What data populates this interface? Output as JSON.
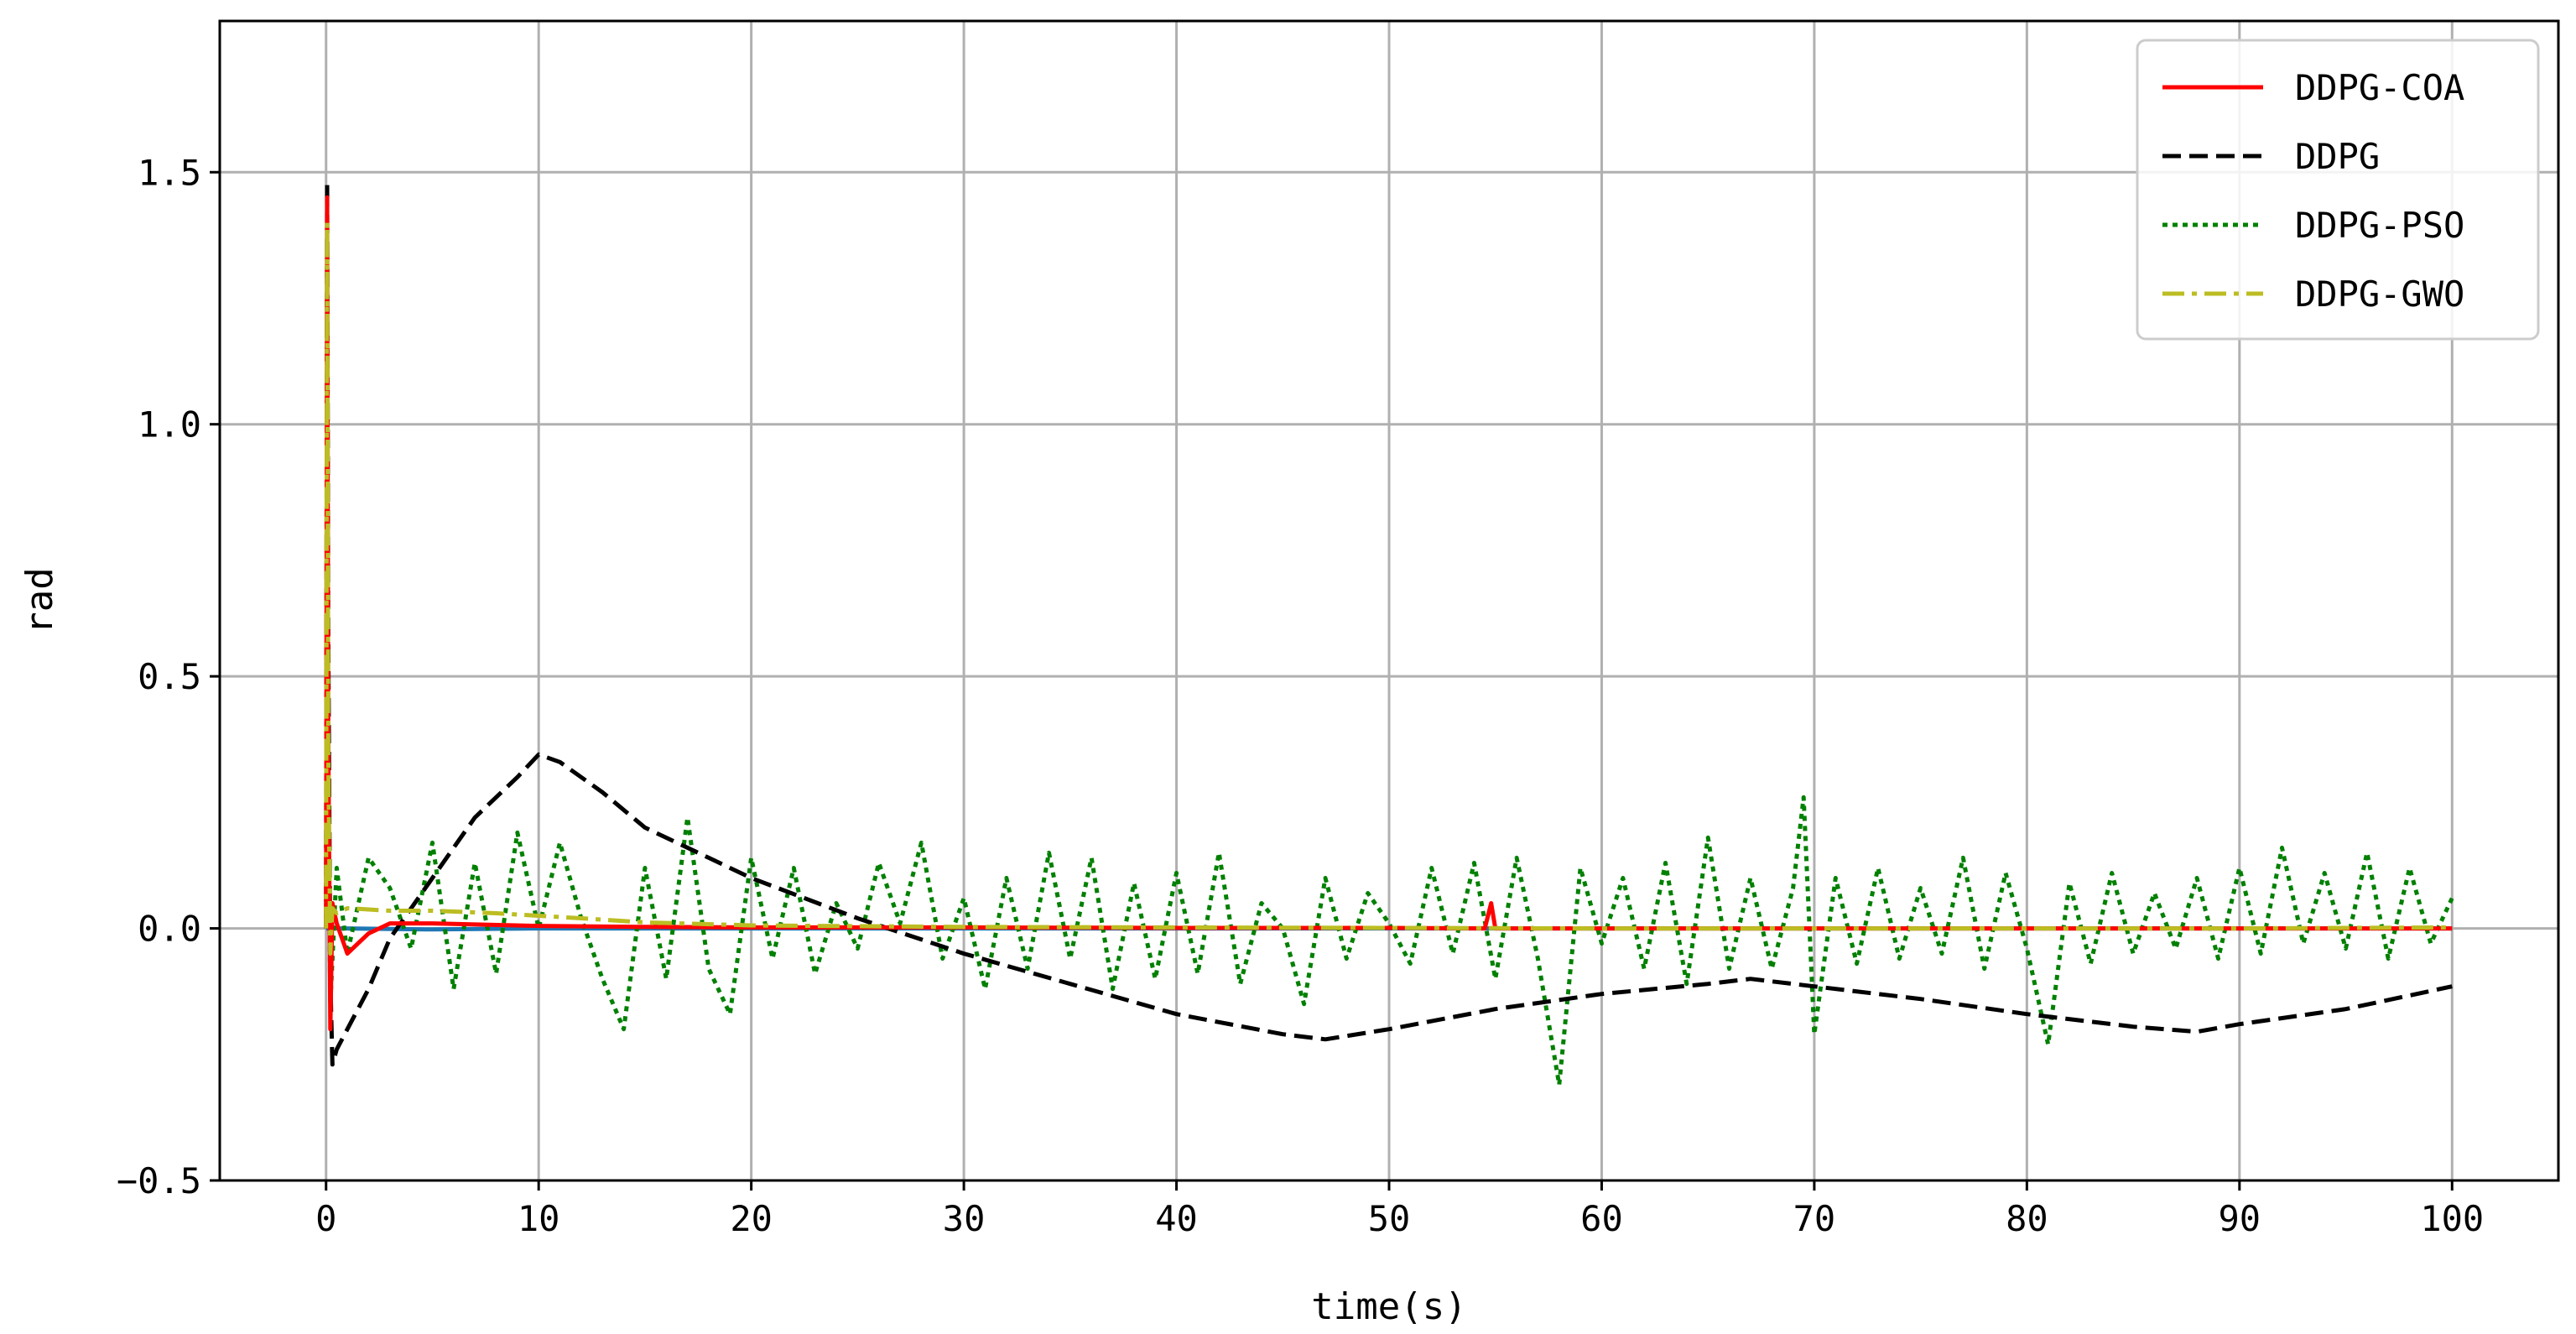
{
  "chart_data": {
    "type": "line",
    "title": "",
    "xlabel": "time(s)",
    "ylabel": "rad",
    "xlim": [
      -5,
      105
    ],
    "ylim": [
      -0.5,
      1.8
    ],
    "xticks": [
      0,
      10,
      20,
      30,
      40,
      50,
      60,
      70,
      80,
      90,
      100
    ],
    "xtick_labels": [
      "0",
      "10",
      "20",
      "30",
      "40",
      "50",
      "60",
      "70",
      "80",
      "90",
      "100"
    ],
    "yticks": [
      -0.5,
      0.0,
      0.5,
      1.0,
      1.5
    ],
    "ytick_labels": [
      "−0.5",
      "0.0",
      "0.5",
      "1.0",
      "1.5"
    ],
    "grid": true,
    "legend_position": "top-right",
    "series": [
      {
        "name": "DDPG-COA",
        "color": "#ff0000",
        "style": "solid",
        "x": [
          0,
          0.05,
          0.1,
          0.2,
          0.3,
          0.5,
          1,
          1.5,
          2,
          3,
          5,
          10,
          15,
          20,
          30,
          40,
          50,
          54.5,
          54.8,
          55,
          55.3,
          60,
          70,
          80,
          90,
          100
        ],
        "y": [
          0,
          1.45,
          0.4,
          -0.2,
          0.05,
          0.01,
          -0.05,
          -0.03,
          -0.01,
          0.01,
          0.01,
          0.005,
          0.003,
          0.002,
          0.002,
          0.001,
          0.001,
          0.0,
          0.05,
          0.0,
          0.0,
          0.0,
          0.0,
          0.0,
          0.0,
          0.0
        ]
      },
      {
        "name": "DDPG",
        "color": "#000000",
        "style": "dashed",
        "x": [
          0,
          0.05,
          0.1,
          0.2,
          0.3,
          0.5,
          1,
          2,
          3,
          5,
          7,
          9,
          10,
          11,
          13,
          15,
          18,
          20,
          25,
          30,
          35,
          40,
          45,
          47,
          50,
          55,
          60,
          65,
          67,
          70,
          75,
          80,
          85,
          88,
          90,
          95,
          100
        ],
        "y": [
          0,
          1.48,
          0.6,
          -0.1,
          -0.27,
          -0.24,
          -0.2,
          -0.12,
          -0.02,
          0.1,
          0.22,
          0.3,
          0.345,
          0.33,
          0.27,
          0.2,
          0.14,
          0.1,
          0.02,
          -0.05,
          -0.11,
          -0.17,
          -0.21,
          -0.22,
          -0.2,
          -0.16,
          -0.13,
          -0.11,
          -0.1,
          -0.115,
          -0.14,
          -0.17,
          -0.195,
          -0.205,
          -0.19,
          -0.16,
          -0.115
        ]
      },
      {
        "name": "DDPG-PSO",
        "color": "#008000",
        "style": "dotted",
        "x": [
          0,
          0.05,
          0.1,
          0.2,
          0.5,
          1,
          2,
          3,
          4,
          5,
          6,
          7,
          8,
          9,
          10,
          11,
          12,
          13,
          14,
          15,
          16,
          17,
          18,
          19,
          20,
          21,
          22,
          23,
          24,
          25,
          26,
          27,
          28,
          29,
          30,
          31,
          32,
          33,
          34,
          35,
          36,
          37,
          38,
          39,
          40,
          41,
          42,
          43,
          44,
          45,
          46,
          47,
          48,
          49,
          50,
          51,
          52,
          53,
          54,
          55,
          56,
          57,
          58,
          59,
          60,
          61,
          62,
          63,
          64,
          65,
          66,
          67,
          68,
          69,
          69.5,
          70,
          71,
          72,
          73,
          74,
          75,
          76,
          77,
          78,
          79,
          80,
          81,
          82,
          83,
          84,
          85,
          86,
          87,
          88,
          89,
          90,
          91,
          92,
          93,
          94,
          95,
          96,
          97,
          98,
          99,
          100
        ],
        "y": [
          0,
          1.2,
          0.3,
          -0.15,
          0.12,
          -0.05,
          0.14,
          0.08,
          -0.04,
          0.17,
          -0.12,
          0.13,
          -0.09,
          0.19,
          0.0,
          0.17,
          0.02,
          -0.1,
          -0.2,
          0.12,
          -0.1,
          0.22,
          -0.08,
          -0.17,
          0.14,
          -0.06,
          0.12,
          -0.09,
          0.05,
          -0.04,
          0.13,
          0.01,
          0.17,
          -0.06,
          0.06,
          -0.12,
          0.1,
          -0.08,
          0.15,
          -0.06,
          0.14,
          -0.12,
          0.09,
          -0.1,
          0.11,
          -0.09,
          0.15,
          -0.11,
          0.05,
          0.0,
          -0.15,
          0.1,
          -0.06,
          0.07,
          0.01,
          -0.07,
          0.12,
          -0.05,
          0.13,
          -0.1,
          0.14,
          -0.06,
          -0.31,
          0.12,
          -0.03,
          0.1,
          -0.08,
          0.13,
          -0.11,
          0.18,
          -0.08,
          0.1,
          -0.08,
          0.08,
          0.26,
          -0.21,
          0.1,
          -0.07,
          0.12,
          -0.06,
          0.08,
          -0.05,
          0.14,
          -0.08,
          0.11,
          -0.04,
          -0.23,
          0.09,
          -0.07,
          0.11,
          -0.05,
          0.07,
          -0.04,
          0.1,
          -0.06,
          0.12,
          -0.05,
          0.16,
          -0.03,
          0.11,
          -0.04,
          0.15,
          -0.06,
          0.12,
          -0.03,
          0.06
        ]
      },
      {
        "name": "DDPG-GWO",
        "color": "#bcbd22",
        "style": "dashdot",
        "x": [
          0,
          0.05,
          0.1,
          0.2,
          0.3,
          0.5,
          1,
          3,
          5,
          8,
          10,
          12,
          15,
          20,
          30,
          40,
          50,
          60,
          70,
          80,
          90,
          100
        ],
        "y": [
          0,
          1.4,
          0.35,
          -0.05,
          0.04,
          0.03,
          0.04,
          0.035,
          0.035,
          0.03,
          0.025,
          0.02,
          0.012,
          0.006,
          0.003,
          0.002,
          0.001,
          0.0,
          0.0,
          0.0,
          0.0,
          0.002
        ]
      },
      {
        "name": "",
        "color": "#1f77b4",
        "style": "solid",
        "x": [
          0,
          0.3,
          1,
          5,
          10,
          15,
          20,
          30,
          40,
          50,
          60,
          70,
          80,
          90,
          100
        ],
        "y": [
          0,
          0.0,
          0.0,
          -0.002,
          0.0,
          0.0,
          0.0,
          0.0,
          0.0,
          0.0,
          0.0,
          0.0,
          0.0,
          0.0,
          0.0
        ]
      }
    ]
  }
}
